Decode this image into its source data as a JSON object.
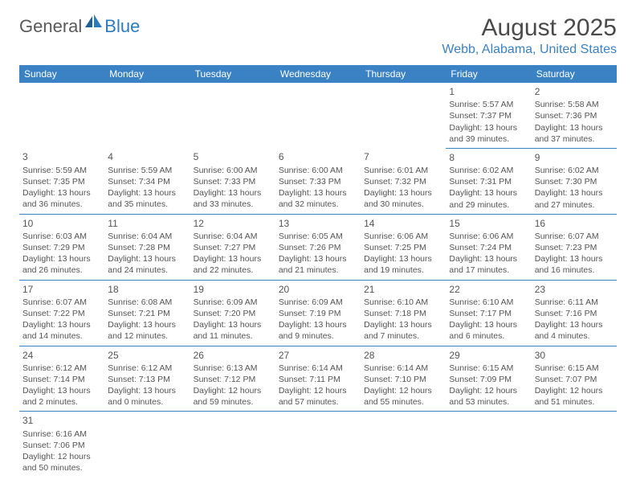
{
  "logo": {
    "general": "General",
    "blue": "Blue"
  },
  "month_title": "August 2025",
  "location": "Webb, Alabama, United States",
  "header_color": "#3b82c4",
  "days_of_week": [
    "Sunday",
    "Monday",
    "Tuesday",
    "Wednesday",
    "Thursday",
    "Friday",
    "Saturday"
  ],
  "weeks": [
    [
      null,
      null,
      null,
      null,
      null,
      {
        "n": "1",
        "sr": "Sunrise: 5:57 AM",
        "ss": "Sunset: 7:37 PM",
        "d1": "Daylight: 13 hours",
        "d2": "and 39 minutes."
      },
      {
        "n": "2",
        "sr": "Sunrise: 5:58 AM",
        "ss": "Sunset: 7:36 PM",
        "d1": "Daylight: 13 hours",
        "d2": "and 37 minutes."
      }
    ],
    [
      {
        "n": "3",
        "sr": "Sunrise: 5:59 AM",
        "ss": "Sunset: 7:35 PM",
        "d1": "Daylight: 13 hours",
        "d2": "and 36 minutes."
      },
      {
        "n": "4",
        "sr": "Sunrise: 5:59 AM",
        "ss": "Sunset: 7:34 PM",
        "d1": "Daylight: 13 hours",
        "d2": "and 35 minutes."
      },
      {
        "n": "5",
        "sr": "Sunrise: 6:00 AM",
        "ss": "Sunset: 7:33 PM",
        "d1": "Daylight: 13 hours",
        "d2": "and 33 minutes."
      },
      {
        "n": "6",
        "sr": "Sunrise: 6:00 AM",
        "ss": "Sunset: 7:33 PM",
        "d1": "Daylight: 13 hours",
        "d2": "and 32 minutes."
      },
      {
        "n": "7",
        "sr": "Sunrise: 6:01 AM",
        "ss": "Sunset: 7:32 PM",
        "d1": "Daylight: 13 hours",
        "d2": "and 30 minutes."
      },
      {
        "n": "8",
        "sr": "Sunrise: 6:02 AM",
        "ss": "Sunset: 7:31 PM",
        "d1": "Daylight: 13 hours",
        "d2": "and 29 minutes."
      },
      {
        "n": "9",
        "sr": "Sunrise: 6:02 AM",
        "ss": "Sunset: 7:30 PM",
        "d1": "Daylight: 13 hours",
        "d2": "and 27 minutes."
      }
    ],
    [
      {
        "n": "10",
        "sr": "Sunrise: 6:03 AM",
        "ss": "Sunset: 7:29 PM",
        "d1": "Daylight: 13 hours",
        "d2": "and 26 minutes."
      },
      {
        "n": "11",
        "sr": "Sunrise: 6:04 AM",
        "ss": "Sunset: 7:28 PM",
        "d1": "Daylight: 13 hours",
        "d2": "and 24 minutes."
      },
      {
        "n": "12",
        "sr": "Sunrise: 6:04 AM",
        "ss": "Sunset: 7:27 PM",
        "d1": "Daylight: 13 hours",
        "d2": "and 22 minutes."
      },
      {
        "n": "13",
        "sr": "Sunrise: 6:05 AM",
        "ss": "Sunset: 7:26 PM",
        "d1": "Daylight: 13 hours",
        "d2": "and 21 minutes."
      },
      {
        "n": "14",
        "sr": "Sunrise: 6:06 AM",
        "ss": "Sunset: 7:25 PM",
        "d1": "Daylight: 13 hours",
        "d2": "and 19 minutes."
      },
      {
        "n": "15",
        "sr": "Sunrise: 6:06 AM",
        "ss": "Sunset: 7:24 PM",
        "d1": "Daylight: 13 hours",
        "d2": "and 17 minutes."
      },
      {
        "n": "16",
        "sr": "Sunrise: 6:07 AM",
        "ss": "Sunset: 7:23 PM",
        "d1": "Daylight: 13 hours",
        "d2": "and 16 minutes."
      }
    ],
    [
      {
        "n": "17",
        "sr": "Sunrise: 6:07 AM",
        "ss": "Sunset: 7:22 PM",
        "d1": "Daylight: 13 hours",
        "d2": "and 14 minutes."
      },
      {
        "n": "18",
        "sr": "Sunrise: 6:08 AM",
        "ss": "Sunset: 7:21 PM",
        "d1": "Daylight: 13 hours",
        "d2": "and 12 minutes."
      },
      {
        "n": "19",
        "sr": "Sunrise: 6:09 AM",
        "ss": "Sunset: 7:20 PM",
        "d1": "Daylight: 13 hours",
        "d2": "and 11 minutes."
      },
      {
        "n": "20",
        "sr": "Sunrise: 6:09 AM",
        "ss": "Sunset: 7:19 PM",
        "d1": "Daylight: 13 hours",
        "d2": "and 9 minutes."
      },
      {
        "n": "21",
        "sr": "Sunrise: 6:10 AM",
        "ss": "Sunset: 7:18 PM",
        "d1": "Daylight: 13 hours",
        "d2": "and 7 minutes."
      },
      {
        "n": "22",
        "sr": "Sunrise: 6:10 AM",
        "ss": "Sunset: 7:17 PM",
        "d1": "Daylight: 13 hours",
        "d2": "and 6 minutes."
      },
      {
        "n": "23",
        "sr": "Sunrise: 6:11 AM",
        "ss": "Sunset: 7:16 PM",
        "d1": "Daylight: 13 hours",
        "d2": "and 4 minutes."
      }
    ],
    [
      {
        "n": "24",
        "sr": "Sunrise: 6:12 AM",
        "ss": "Sunset: 7:14 PM",
        "d1": "Daylight: 13 hours",
        "d2": "and 2 minutes."
      },
      {
        "n": "25",
        "sr": "Sunrise: 6:12 AM",
        "ss": "Sunset: 7:13 PM",
        "d1": "Daylight: 13 hours",
        "d2": "and 0 minutes."
      },
      {
        "n": "26",
        "sr": "Sunrise: 6:13 AM",
        "ss": "Sunset: 7:12 PM",
        "d1": "Daylight: 12 hours",
        "d2": "and 59 minutes."
      },
      {
        "n": "27",
        "sr": "Sunrise: 6:14 AM",
        "ss": "Sunset: 7:11 PM",
        "d1": "Daylight: 12 hours",
        "d2": "and 57 minutes."
      },
      {
        "n": "28",
        "sr": "Sunrise: 6:14 AM",
        "ss": "Sunset: 7:10 PM",
        "d1": "Daylight: 12 hours",
        "d2": "and 55 minutes."
      },
      {
        "n": "29",
        "sr": "Sunrise: 6:15 AM",
        "ss": "Sunset: 7:09 PM",
        "d1": "Daylight: 12 hours",
        "d2": "and 53 minutes."
      },
      {
        "n": "30",
        "sr": "Sunrise: 6:15 AM",
        "ss": "Sunset: 7:07 PM",
        "d1": "Daylight: 12 hours",
        "d2": "and 51 minutes."
      }
    ],
    [
      {
        "n": "31",
        "sr": "Sunrise: 6:16 AM",
        "ss": "Sunset: 7:06 PM",
        "d1": "Daylight: 12 hours",
        "d2": "and 50 minutes."
      },
      null,
      null,
      null,
      null,
      null,
      null
    ]
  ]
}
